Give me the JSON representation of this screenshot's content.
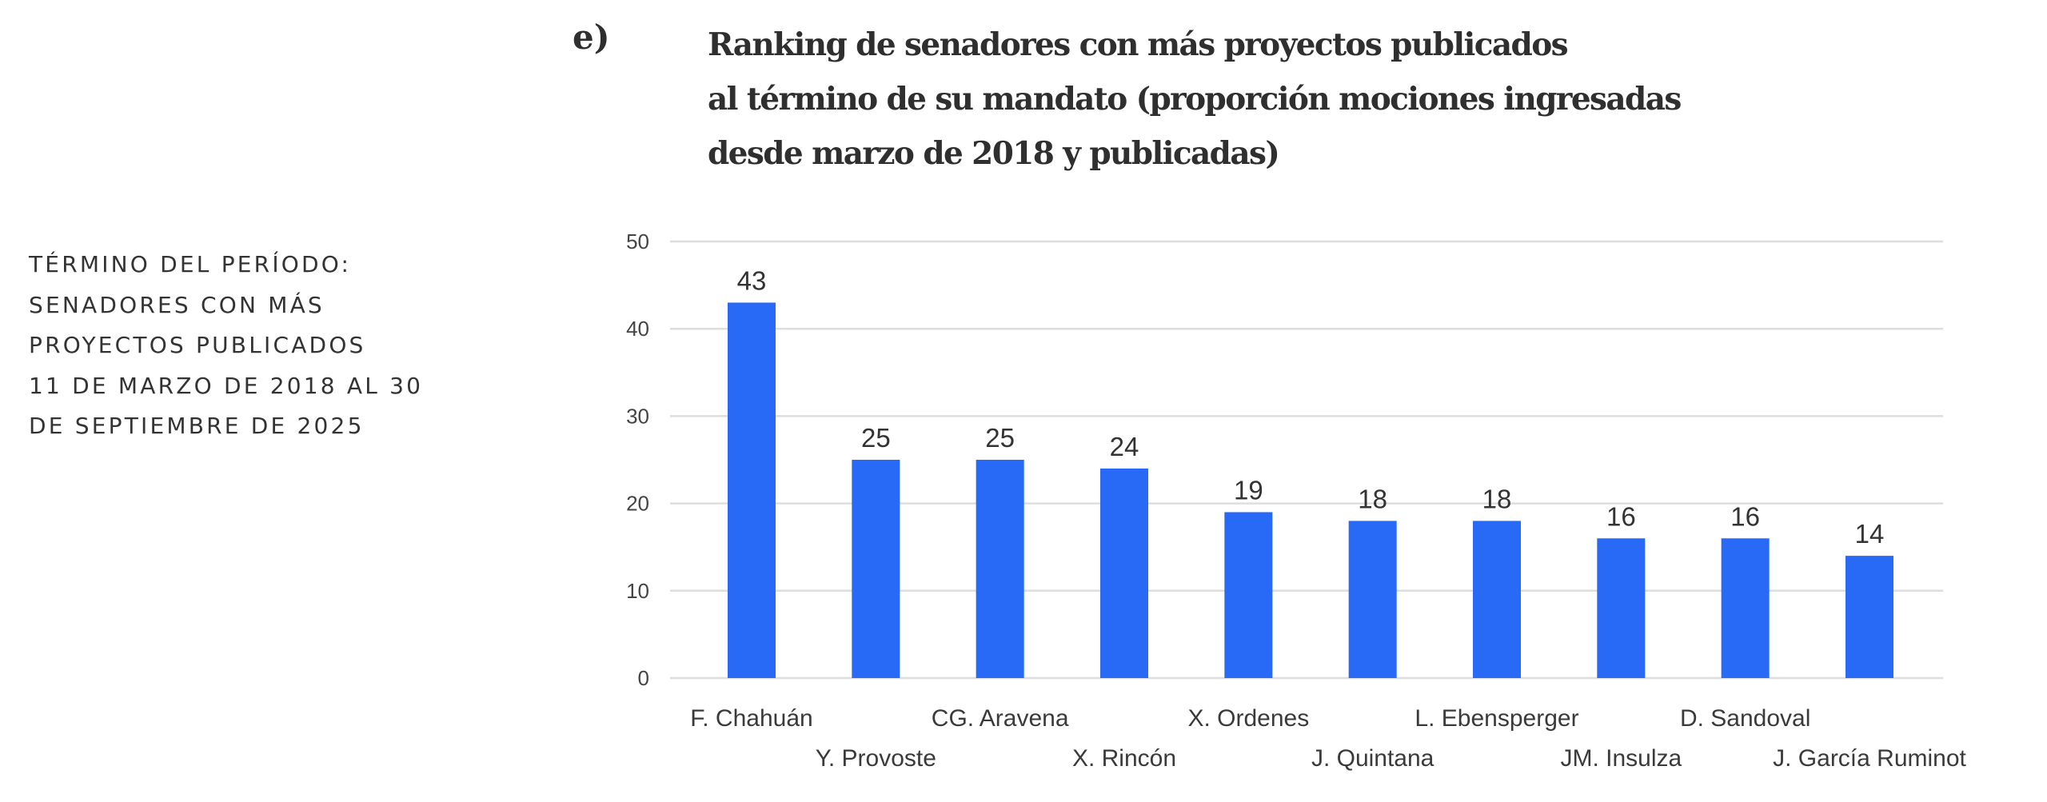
{
  "side_note": {
    "lines": [
      "TÉRMINO DEL PERÍODO:",
      "SENADORES CON MÁS",
      "PROYECTOS PUBLICADOS",
      "11 DE MARZO DE 2018 AL 30",
      "DE SEPTIEMBRE DE 2025"
    ]
  },
  "panel_label": "e)",
  "title_lines": [
    "Ranking de senadores con más proyectos publicados",
    "al término de su mandato (proporción mociones ingresadas",
    "desde marzo de 2018 y publicadas)"
  ],
  "colors": {
    "bar": "#2869F5",
    "text": "#333333",
    "grid": "#DEDEDE"
  },
  "chart_data": {
    "type": "bar",
    "title": "Ranking de senadores con más proyectos publicados al término de su mandato (proporción mociones ingresadas desde marzo de 2018 y publicadas)",
    "xlabel": "",
    "ylabel": "",
    "categories": [
      "F. Chahuán",
      "Y. Provoste",
      "CG. Aravena",
      "X. Rincón",
      "X. Ordenes",
      "J. Quintana",
      "L. Ebensperger",
      "JM. Insulza",
      "D. Sandoval",
      "J. García Ruminot"
    ],
    "values": [
      43,
      25,
      25,
      24,
      19,
      18,
      18,
      16,
      16,
      14
    ],
    "data_labels": [
      "43",
      "25",
      "25",
      "24",
      "19",
      "18",
      "18",
      "16",
      "16",
      "14"
    ],
    "ylim": [
      0,
      50
    ],
    "yticks": [
      0,
      10,
      20,
      30,
      40,
      50
    ],
    "ytick_labels": [
      "0",
      "10",
      "20",
      "30",
      "40",
      "50"
    ],
    "grid": true,
    "legend": "none",
    "category_label_layout": "staggered"
  }
}
